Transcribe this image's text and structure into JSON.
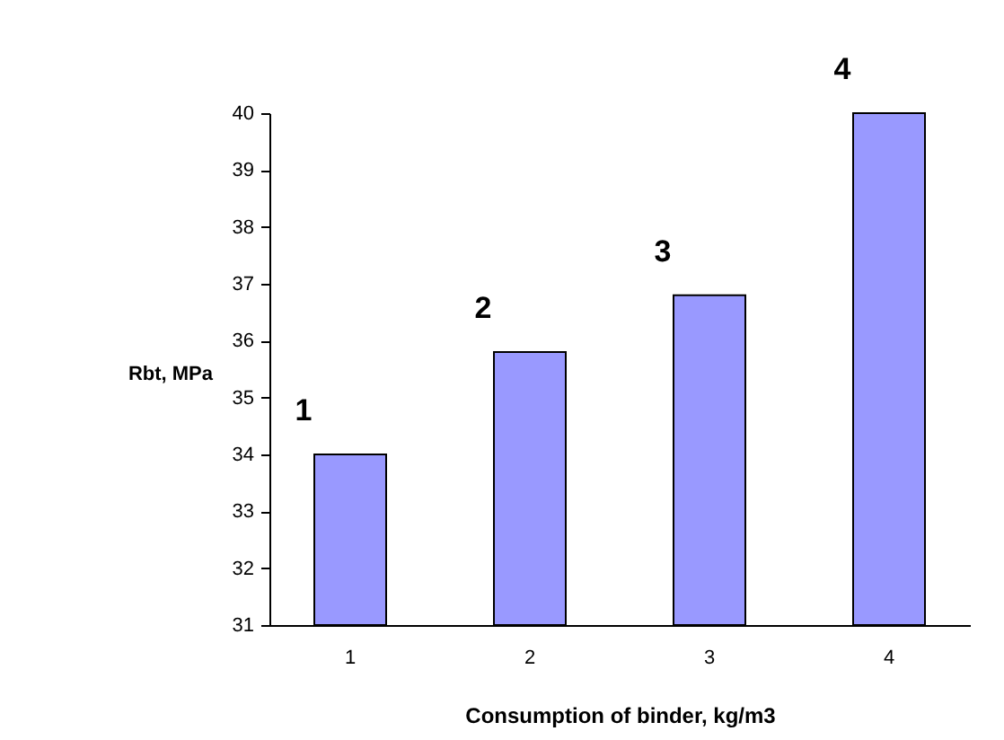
{
  "chart_data": {
    "type": "bar",
    "categories": [
      "1",
      "2",
      "3",
      "4"
    ],
    "values": [
      34,
      35.8,
      36.8,
      40
    ],
    "color": "#9999ff",
    "xlabel": "Consumption of binder, kg/m3",
    "ylabel": "Rbt, MPa",
    "ylim": [
      31,
      40
    ],
    "yticks": [
      31,
      32,
      33,
      34,
      35,
      36,
      37,
      38,
      39,
      40
    ],
    "grid": false,
    "annotations": [
      {
        "text": "1",
        "x": "1",
        "y": 34
      },
      {
        "text": "2",
        "x": "2",
        "y": 35.8
      },
      {
        "text": "3",
        "x": "3",
        "y": 36.8
      },
      {
        "text": "4",
        "x": "4",
        "y": 40
      }
    ]
  }
}
